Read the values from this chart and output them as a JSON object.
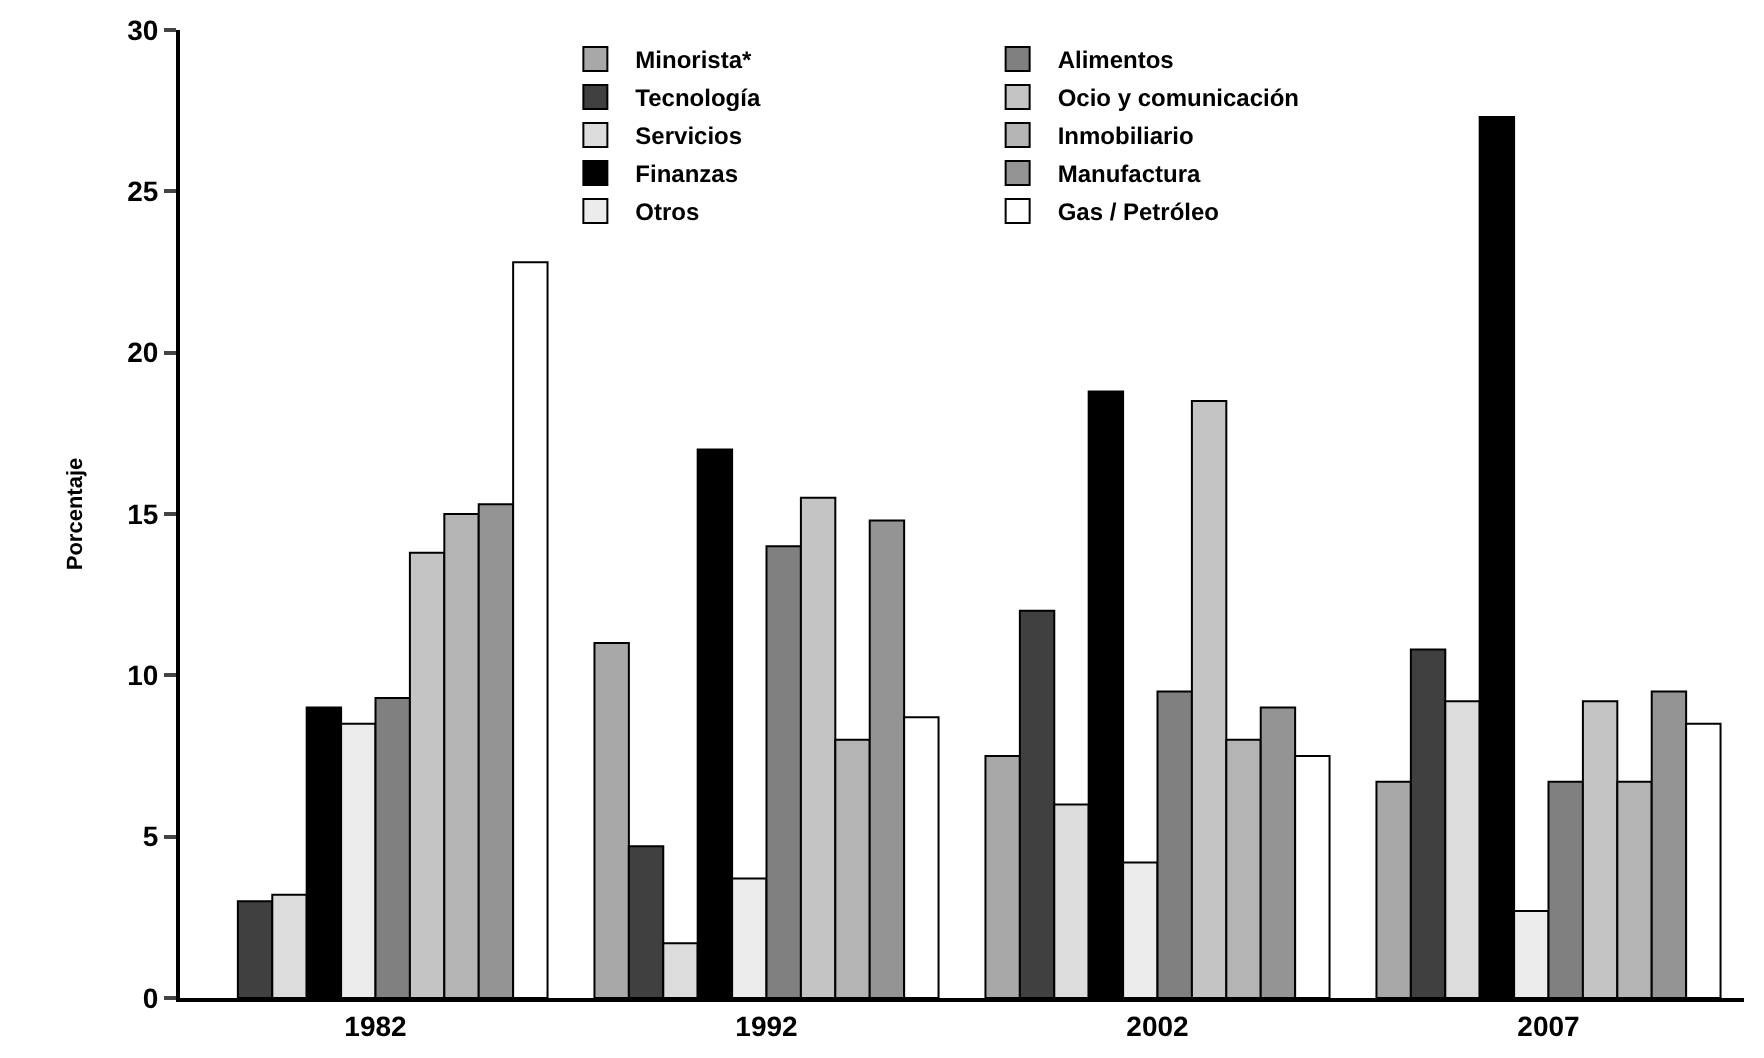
{
  "chart_data": {
    "type": "bar",
    "ylabel": "Porcentaje",
    "categories": [
      "1982",
      "1992",
      "2002",
      "2007"
    ],
    "ylim": [
      0,
      30
    ],
    "yticks": [
      0,
      5,
      10,
      15,
      20,
      25,
      30
    ],
    "grid": false,
    "legend": "top",
    "series": [
      {
        "name": "Minorista*",
        "color": "#a8a8a8",
        "values": [
          null,
          11,
          7.5,
          6.7
        ]
      },
      {
        "name": "Tecnología",
        "color": "#404040",
        "values": [
          3,
          4.7,
          12,
          10.8
        ]
      },
      {
        "name": "Servicios",
        "color": "#dcdcdc",
        "values": [
          3.2,
          1.7,
          6,
          9.2
        ]
      },
      {
        "name": "Finanzas",
        "color": "#000000",
        "values": [
          9,
          17,
          18.8,
          27.3
        ]
      },
      {
        "name": "Otros",
        "color": "#ececec",
        "values": [
          8.5,
          3.7,
          4.2,
          2.7
        ]
      },
      {
        "name": "Alimentos",
        "color": "#808080",
        "values": [
          9.3,
          14,
          9.5,
          6.7
        ]
      },
      {
        "name": "Ocio y comunicación",
        "color": "#c4c4c4",
        "values": [
          13.8,
          15.5,
          18.5,
          9.2
        ]
      },
      {
        "name": "Inmobiliario",
        "color": "#b4b4b4",
        "values": [
          15,
          8,
          8,
          6.7
        ]
      },
      {
        "name": "Manufactura",
        "color": "#949494",
        "values": [
          15.3,
          14.8,
          9,
          9.5
        ]
      },
      {
        "name": "Gas / Petróleo",
        "color": "#ffffff",
        "values": [
          22.8,
          8.7,
          7.5,
          8.5
        ]
      }
    ]
  }
}
